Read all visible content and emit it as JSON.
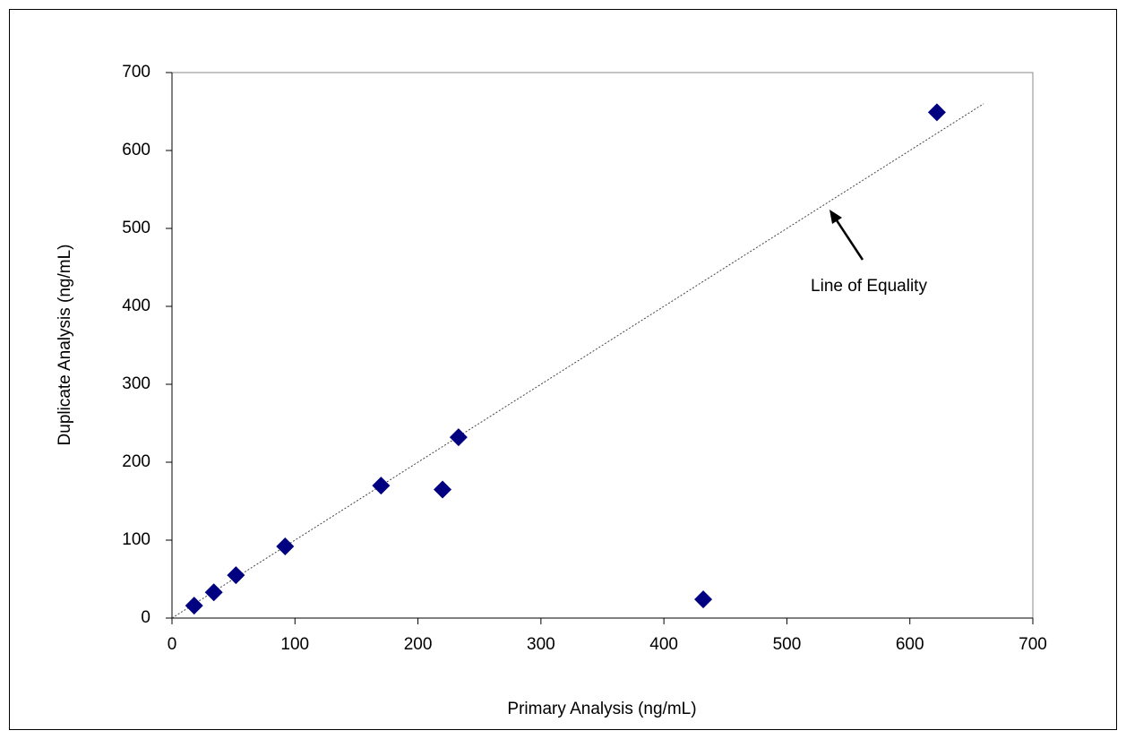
{
  "chart_data": {
    "type": "scatter",
    "x_label": "Primary Analysis (ng/mL)",
    "y_label": "Duplicate Analysis (ng/mL)",
    "x": [
      18,
      34,
      52,
      92,
      170,
      220,
      233,
      432,
      622
    ],
    "values": [
      16,
      33,
      55,
      92,
      170,
      165,
      232,
      24,
      649
    ],
    "color": "#000080",
    "marker": "diamond",
    "equality_line": {
      "x": [
        0,
        660
      ],
      "y": [
        0,
        660
      ],
      "color": "#444444"
    },
    "annotation": "Line of Equality",
    "xlim": [
      0,
      700
    ],
    "xticks": [
      0,
      100,
      200,
      300,
      400,
      500,
      600,
      700
    ],
    "ylim": [
      0,
      700
    ],
    "yticks": [
      0,
      100,
      200,
      300,
      400,
      500,
      600,
      700
    ],
    "grid": false
  }
}
